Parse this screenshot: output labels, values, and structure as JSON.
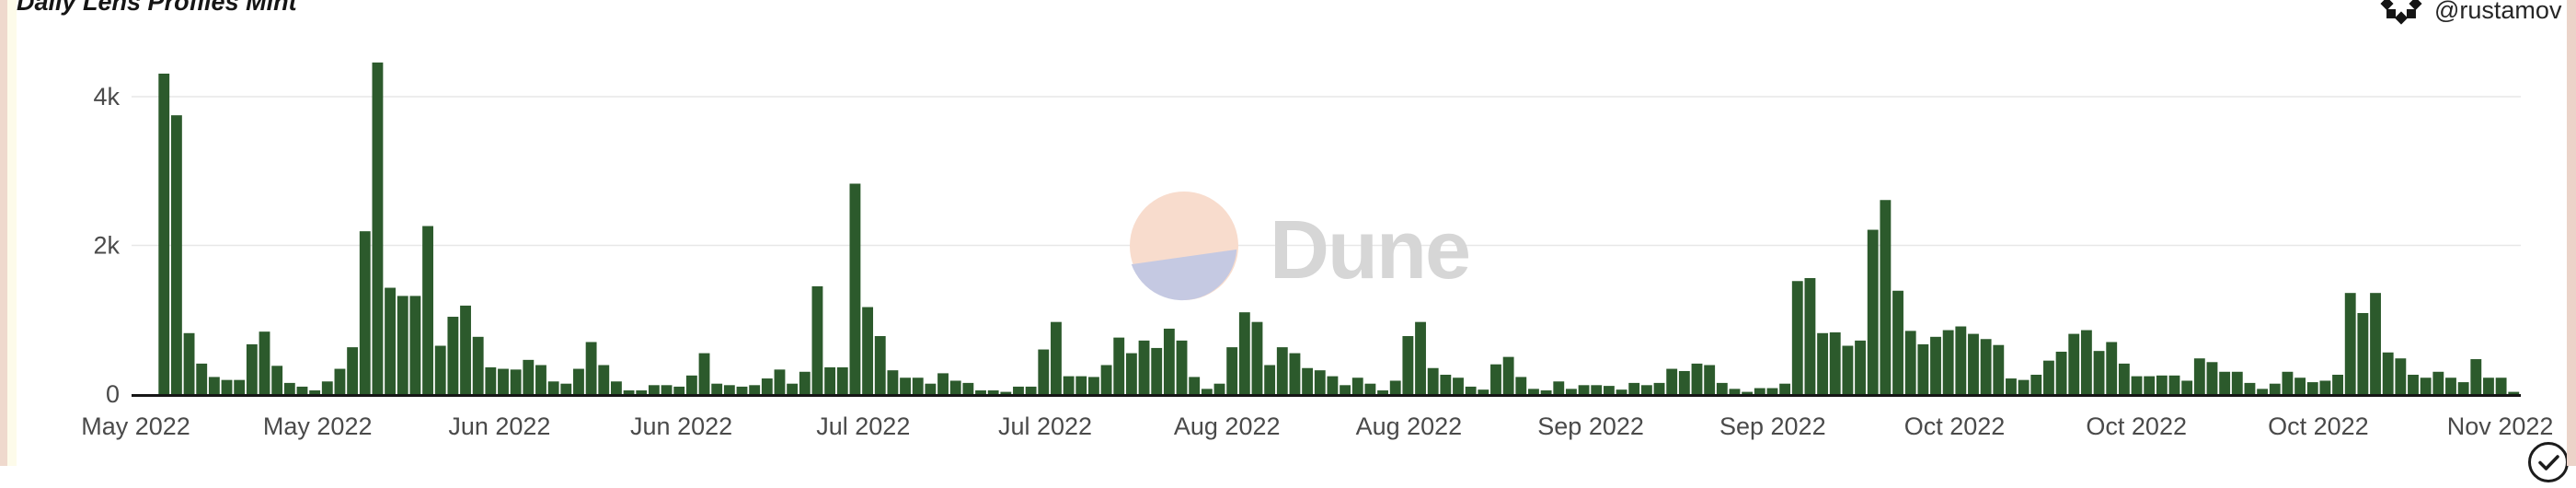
{
  "page": {
    "background_color": "#efd9cd",
    "card_color": "#ffffff"
  },
  "header": {
    "title": "Daily Lens Profiles Mint",
    "author_handle": "@rustamov"
  },
  "watermark": {
    "text": "Dune",
    "text_color": "#d6d6d6",
    "circle_top_color": "#f8dccd",
    "circle_bottom_color": "#c5c9e2"
  },
  "chart_data": {
    "type": "bar",
    "title": "Daily Lens Profiles Mint",
    "xlabel": "",
    "ylabel": "",
    "ylim": [
      0,
      4820
    ],
    "grid": "horizontal-gridlines-at-2k-and-4k",
    "legend_position": "none",
    "bar_color": "#2c5a2c",
    "axis_line_color": "#161616",
    "gridline_color": "#e7e7e7",
    "tick_text_color": "#4a4a4a",
    "y_ticks": [
      {
        "label": "0",
        "value": 0
      },
      {
        "label": "2k",
        "value": 2000
      },
      {
        "label": "4k",
        "value": 4000
      }
    ],
    "x_tick_labels": [
      "May 2022",
      "May 2022",
      "Jun 2022",
      "Jun 2022",
      "Jul 2022",
      "Jul 2022",
      "Aug 2022",
      "Aug 2022",
      "Sep 2022",
      "Sep 2022",
      "Oct 2022",
      "Oct 2022",
      "Oct 2022",
      "Nov 2022"
    ],
    "x_unit": "day",
    "values": [
      0,
      0,
      4310,
      3750,
      820,
      410,
      230,
      190,
      190,
      670,
      840,
      380,
      150,
      100,
      50,
      170,
      340,
      630,
      2190,
      4460,
      1430,
      1320,
      1320,
      2260,
      650,
      1040,
      1190,
      770,
      360,
      340,
      330,
      460,
      390,
      170,
      140,
      340,
      700,
      390,
      170,
      50,
      50,
      120,
      120,
      100,
      250,
      550,
      140,
      120,
      100,
      120,
      210,
      330,
      140,
      300,
      1450,
      360,
      360,
      2830,
      1170,
      780,
      320,
      220,
      220,
      140,
      280,
      180,
      150,
      50,
      50,
      30,
      100,
      100,
      600,
      970,
      240,
      240,
      230,
      390,
      760,
      550,
      720,
      620,
      880,
      720,
      230,
      70,
      140,
      630,
      1100,
      970,
      390,
      630,
      550,
      350,
      320,
      240,
      120,
      220,
      140,
      50,
      180,
      780,
      970,
      350,
      260,
      220,
      100,
      60,
      400,
      500,
      230,
      70,
      50,
      170,
      70,
      120,
      120,
      110,
      60,
      150,
      120,
      150,
      340,
      310,
      410,
      390,
      150,
      70,
      30,
      80,
      80,
      140,
      1520,
      1560,
      820,
      830,
      650,
      720,
      2210,
      2610,
      1390,
      850,
      670,
      770,
      860,
      910,
      810,
      740,
      660,
      210,
      190,
      260,
      450,
      570,
      810,
      860,
      580,
      700,
      410,
      240,
      240,
      250,
      250,
      180,
      480,
      430,
      300,
      300,
      150,
      70,
      140,
      300,
      220,
      160,
      180,
      260,
      1360,
      1090,
      1360,
      560,
      480,
      260,
      220,
      300,
      220,
      160,
      470,
      220,
      220,
      30
    ]
  }
}
